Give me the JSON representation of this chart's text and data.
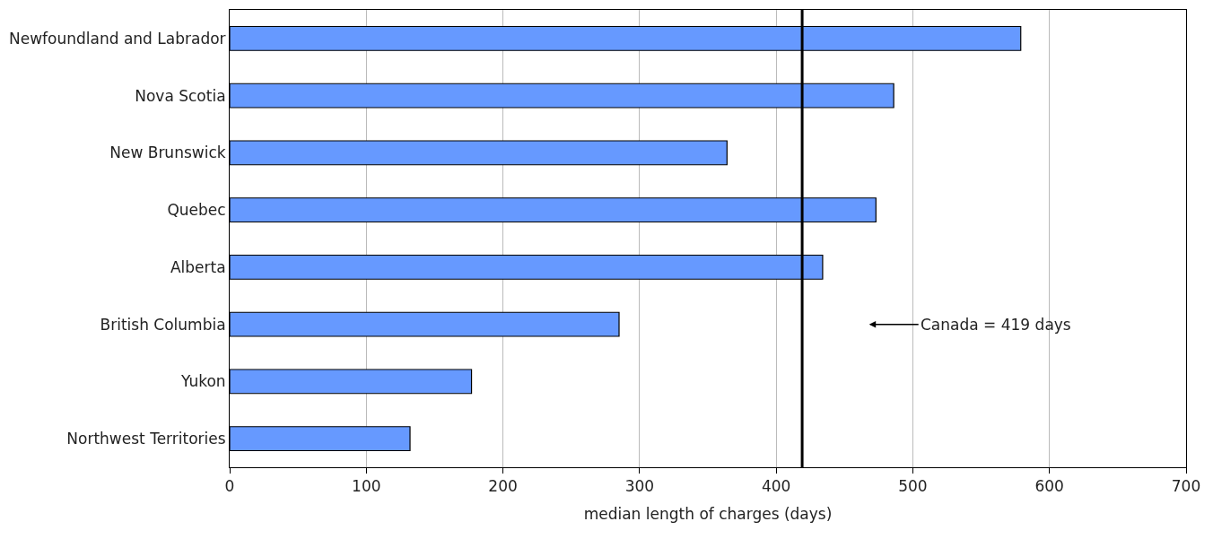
{
  "chart_data": {
    "type": "bar",
    "orientation": "horizontal",
    "xlabel": "median length of charges (days)",
    "categories": [
      "Newfoundland and Labrador",
      "Nova Scotia",
      "New Brunswick",
      "Quebec",
      "Alberta",
      "British Columbia",
      "Yukon",
      "Northwest Territories"
    ],
    "series": [
      {
        "color": "#6699ff",
        "values": [
          579,
          486,
          364,
          473,
          434,
          285,
          177,
          132
        ]
      }
    ],
    "xlim": [
      0,
      700
    ],
    "xticks": [
      0,
      100,
      200,
      300,
      400,
      500,
      600,
      700
    ],
    "grid": "x",
    "ref_lines": [
      {
        "axis": "x",
        "value": 419,
        "label": "Canada = 419 days",
        "color": "#000000",
        "line_style": "solid"
      }
    ]
  }
}
